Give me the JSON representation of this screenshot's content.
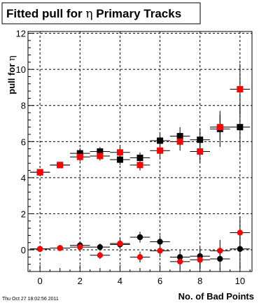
{
  "title_main": "Fitted pull for ",
  "title_symbol": "η",
  "title_rest": " Primary Tracks",
  "timestamp": "Thu Oct 27 18:02:56 2011",
  "chart_data": {
    "type": "scatter",
    "xlabel": "No. of Bad Points",
    "ylabel_text": "pull for ",
    "ylabel_symbol": "η",
    "xlim": [
      -0.6,
      10.6
    ],
    "ylim": [
      -1.2,
      12.1
    ],
    "xticks": [
      0,
      2,
      4,
      6,
      8,
      10
    ],
    "yticks": [
      0,
      2,
      4,
      6,
      8,
      10,
      12
    ],
    "grid": true,
    "series": [
      {
        "marker": "square",
        "color": "#000000",
        "points": [
          {
            "x": 0,
            "y": 4.3,
            "ey": 0.12
          },
          {
            "x": 1,
            "y": 4.7,
            "ey": 0.1
          },
          {
            "x": 2,
            "y": 5.35,
            "ey": 0.3
          },
          {
            "x": 3,
            "y": 5.45,
            "ey": 0.25
          },
          {
            "x": 4,
            "y": 5.0,
            "ey": 0.3
          },
          {
            "x": 5,
            "y": 5.1,
            "ey": 0.3
          },
          {
            "x": 6,
            "y": 6.05,
            "ey": 0.35
          },
          {
            "x": 7,
            "y": 6.3,
            "ey": 0.5
          },
          {
            "x": 8,
            "y": 6.1,
            "ey": 0.6
          },
          {
            "x": 9,
            "y": 6.7,
            "ey": 1.0
          },
          {
            "x": 10,
            "y": 6.8,
            "ey": 1.3
          }
        ]
      },
      {
        "marker": "square",
        "color": "#ff0000",
        "points": [
          {
            "x": 0,
            "y": 4.3,
            "ey": 0.1
          },
          {
            "x": 1,
            "y": 4.7,
            "ey": 0.1
          },
          {
            "x": 2,
            "y": 5.15,
            "ey": 0.25
          },
          {
            "x": 3,
            "y": 5.2,
            "ey": 0.25
          },
          {
            "x": 4,
            "y": 5.4,
            "ey": 0.3
          },
          {
            "x": 5,
            "y": 4.7,
            "ey": 0.3
          },
          {
            "x": 6,
            "y": 5.5,
            "ey": 0.4
          },
          {
            "x": 7,
            "y": 6.0,
            "ey": 0.5
          },
          {
            "x": 8,
            "y": 5.45,
            "ey": 0.6
          },
          {
            "x": 9,
            "y": 6.8,
            "ey": 0.7
          },
          {
            "x": 10,
            "y": 8.9,
            "ey": 1.4
          }
        ]
      },
      {
        "marker": "circle",
        "color": "#000000",
        "points": [
          {
            "x": 0,
            "y": 0.05,
            "ey": 0.1
          },
          {
            "x": 1,
            "y": 0.1,
            "ey": 0.08
          },
          {
            "x": 2,
            "y": 0.25,
            "ey": 0.2
          },
          {
            "x": 3,
            "y": 0.15,
            "ey": 0.2
          },
          {
            "x": 4,
            "y": 0.3,
            "ey": 0.25
          },
          {
            "x": 5,
            "y": 0.7,
            "ey": 0.3
          },
          {
            "x": 6,
            "y": 0.45,
            "ey": 0.35
          },
          {
            "x": 7,
            "y": -0.4,
            "ey": 0.4
          },
          {
            "x": 8,
            "y": -0.35,
            "ey": 0.5
          },
          {
            "x": 9,
            "y": -0.5,
            "ey": 0.6
          },
          {
            "x": 10,
            "y": 0.05,
            "ey": 1.0
          }
        ]
      },
      {
        "marker": "circle",
        "color": "#ff0000",
        "points": [
          {
            "x": 0,
            "y": 0.05,
            "ey": 0.1
          },
          {
            "x": 1,
            "y": 0.1,
            "ey": 0.08
          },
          {
            "x": 2,
            "y": 0.15,
            "ey": 0.2
          },
          {
            "x": 3,
            "y": -0.3,
            "ey": 0.2
          },
          {
            "x": 4,
            "y": 0.35,
            "ey": 0.25
          },
          {
            "x": 5,
            "y": -0.4,
            "ey": 0.3
          },
          {
            "x": 6,
            "y": -0.05,
            "ey": 0.35
          },
          {
            "x": 7,
            "y": -0.65,
            "ey": 0.4
          },
          {
            "x": 8,
            "y": -0.55,
            "ey": 0.5
          },
          {
            "x": 9,
            "y": -0.05,
            "ey": 0.6
          },
          {
            "x": 10,
            "y": 0.95,
            "ey": 0.9
          }
        ]
      }
    ]
  }
}
